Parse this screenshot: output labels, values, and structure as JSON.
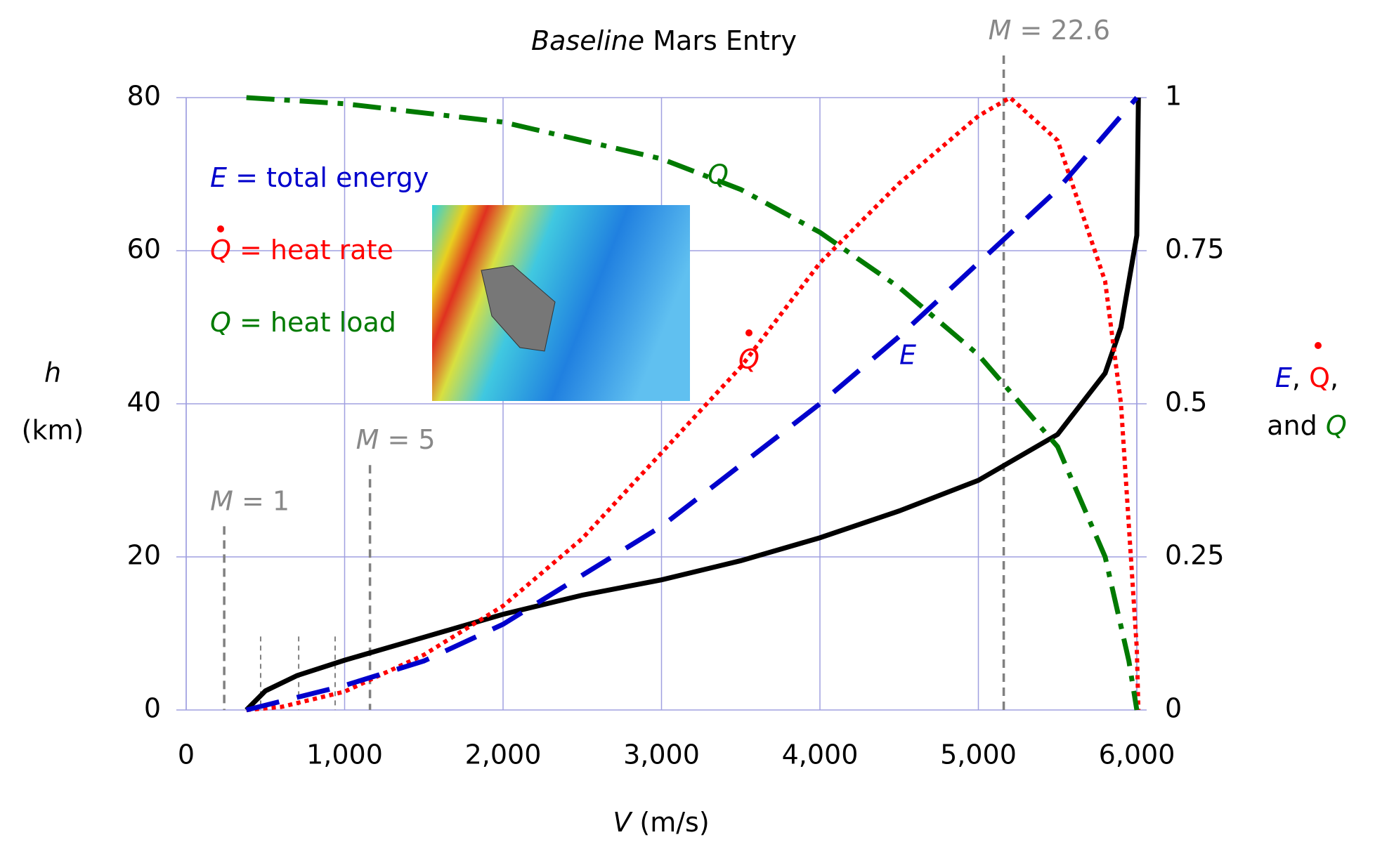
{
  "chart_data": {
    "type": "line",
    "title": {
      "emphasis": "Baseline",
      "rest": "Mars Entry"
    },
    "xlabel": {
      "symbol": "V",
      "unit": "(m/s)"
    },
    "ylabel": {
      "symbol": "h",
      "unit": "(km)"
    },
    "y2label": {
      "symbols": [
        "E",
        ",",
        "Q",
        ","
      ],
      "rest": "and",
      "last": "Q"
    },
    "xlim": [
      0,
      6000
    ],
    "xticks": [
      0,
      {
        "value": 1000,
        "label": "1,000"
      },
      {
        "value": 2000,
        "label": "2,000"
      },
      {
        "value": 3000,
        "label": "3,000"
      },
      {
        "value": 4000,
        "label": "4,000"
      },
      {
        "value": 5000,
        "label": "5,000"
      },
      {
        "value": 6000,
        "label": "6,000"
      }
    ],
    "ylim": [
      0,
      80
    ],
    "yticks": [
      0,
      20,
      40,
      60,
      80
    ],
    "y2lim": [
      0,
      1
    ],
    "y2ticks": [
      0,
      0.25,
      0.5,
      0.75,
      1
    ],
    "grid": true,
    "series": [
      {
        "name": "h",
        "color": "#000000",
        "style": "solid",
        "x": [
          380,
          500,
          700,
          1000,
          1500,
          2000,
          2500,
          3000,
          3500,
          4000,
          4500,
          5000,
          5500,
          5800,
          5900,
          5950,
          6000,
          6010
        ],
        "values": [
          0,
          2.5,
          4.5,
          6.5,
          9.5,
          12.5,
          15,
          17,
          19.5,
          22.5,
          26,
          30,
          36,
          44,
          50,
          56,
          62,
          80
        ]
      },
      {
        "name": "Q",
        "label": "Q",
        "color": "#ff0000",
        "style": "dotted",
        "axis": "y2",
        "x": [
          380,
          600,
          1000,
          1500,
          2000,
          2500,
          3000,
          3500,
          4000,
          4500,
          5000,
          5200,
          5500,
          5800,
          5900,
          5950,
          6000,
          6010
        ],
        "values": [
          0,
          0.005,
          0.03,
          0.09,
          0.17,
          0.28,
          0.42,
          0.56,
          0.73,
          0.86,
          0.97,
          1.0,
          0.93,
          0.7,
          0.5,
          0.3,
          0.1,
          0
        ]
      },
      {
        "name": "E",
        "label": "E",
        "color": "#0000cc",
        "style": "dashed",
        "axis": "y2",
        "x": [
          380,
          1000,
          1500,
          2000,
          2500,
          3000,
          3500,
          4000,
          4500,
          5000,
          5500,
          6000
        ],
        "values": [
          0,
          0.04,
          0.08,
          0.14,
          0.22,
          0.3,
          0.4,
          0.5,
          0.61,
          0.73,
          0.85,
          1.0
        ]
      },
      {
        "name": "Q",
        "label": "Q",
        "color": "#007a00",
        "style": "dashdot",
        "axis": "y2",
        "x": [
          380,
          1000,
          2000,
          3000,
          3500,
          4000,
          4500,
          5000,
          5500,
          5800,
          5950,
          6000
        ],
        "values": [
          1,
          0.99,
          0.96,
          0.9,
          0.85,
          0.78,
          0.69,
          0.58,
          0.43,
          0.25,
          0.08,
          0
        ]
      }
    ],
    "legend": [
      {
        "symbol": "E",
        "text": "= total energy",
        "color": "#0000cc"
      },
      {
        "symbol": "Q",
        "text": "= heat rate",
        "color": "#ff0000"
      },
      {
        "symbol": "Q",
        "text": "= heat load",
        "color": "#007a00"
      }
    ],
    "mach_lines": [
      {
        "symbol": "M",
        "text": "= 1",
        "x": 240,
        "top": 24
      },
      {
        "symbol": "M",
        "text": "= 5",
        "x": 1160,
        "top": 32
      },
      {
        "symbol": "M",
        "text": "= 22.6",
        "x": 5160,
        "top": 100
      }
    ],
    "minor_markers": [
      {
        "x": 470,
        "top": 9.6
      },
      {
        "x": 710,
        "top": 9.6
      },
      {
        "x": 940,
        "top": 9.6
      }
    ]
  }
}
